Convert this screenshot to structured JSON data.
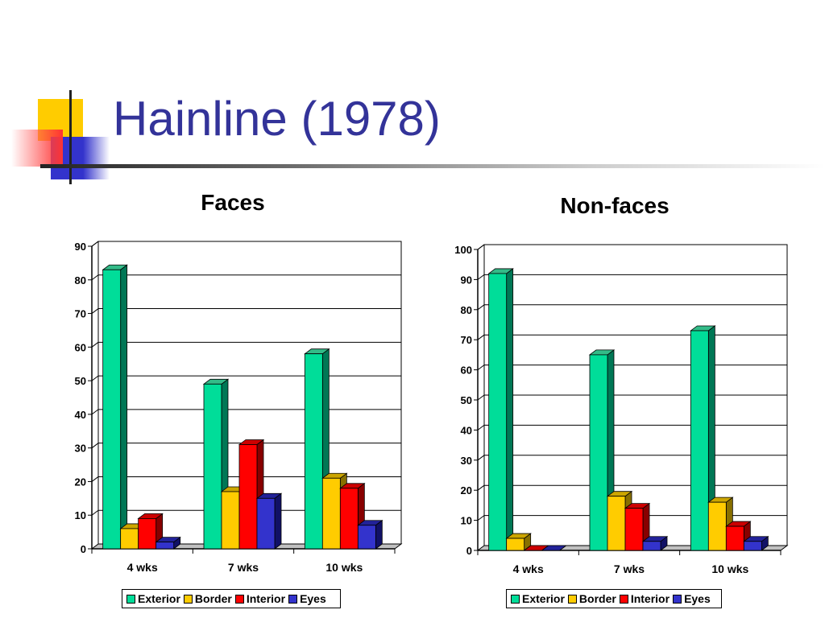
{
  "slide": {
    "title": "Hainline (1978)",
    "colors": {
      "title": "#333399",
      "deco_yellow": "#FFCC00",
      "deco_blue": "#3333CC",
      "deco_red": "#FF3333"
    }
  },
  "colors": {
    "Exterior": {
      "front": "#00DD99",
      "side": "#007755",
      "top": "#33BB88"
    },
    "Border": {
      "front": "#FFCC00",
      "side": "#887000",
      "top": "#CCA600"
    },
    "Interior": {
      "front": "#FF0000",
      "side": "#880000",
      "top": "#CC0000"
    },
    "Eyes": {
      "front": "#3333CC",
      "side": "#111166",
      "top": "#222299"
    }
  },
  "chart_data": [
    {
      "type": "bar",
      "title": "Faces",
      "categories": [
        "4 wks",
        "7 wks",
        "10 wks"
      ],
      "series": [
        {
          "name": "Exterior",
          "values": [
            83,
            49,
            58
          ]
        },
        {
          "name": "Border",
          "values": [
            6,
            17,
            21
          ]
        },
        {
          "name": "Interior",
          "values": [
            9,
            31,
            18
          ]
        },
        {
          "name": "Eyes",
          "values": [
            2,
            15,
            7
          ]
        }
      ],
      "ylim": [
        0,
        90
      ],
      "yticks": [
        0,
        10,
        20,
        30,
        40,
        50,
        60,
        70,
        80,
        90
      ],
      "grid": true,
      "legend": "bottom",
      "style": "3d-clustered-column"
    },
    {
      "type": "bar",
      "title": "Non-faces",
      "categories": [
        "4 wks",
        "7 wks",
        "10 wks"
      ],
      "series": [
        {
          "name": "Exterior",
          "values": [
            92,
            65,
            73
          ]
        },
        {
          "name": "Border",
          "values": [
            4,
            18,
            16
          ]
        },
        {
          "name": "Interior",
          "values": [
            0,
            14,
            8
          ]
        },
        {
          "name": "Eyes",
          "values": [
            0,
            3,
            3
          ]
        }
      ],
      "ylim": [
        0,
        100
      ],
      "yticks": [
        0,
        10,
        20,
        30,
        40,
        50,
        60,
        70,
        80,
        90,
        100
      ],
      "grid": true,
      "legend": "bottom",
      "style": "3d-clustered-column"
    }
  ]
}
